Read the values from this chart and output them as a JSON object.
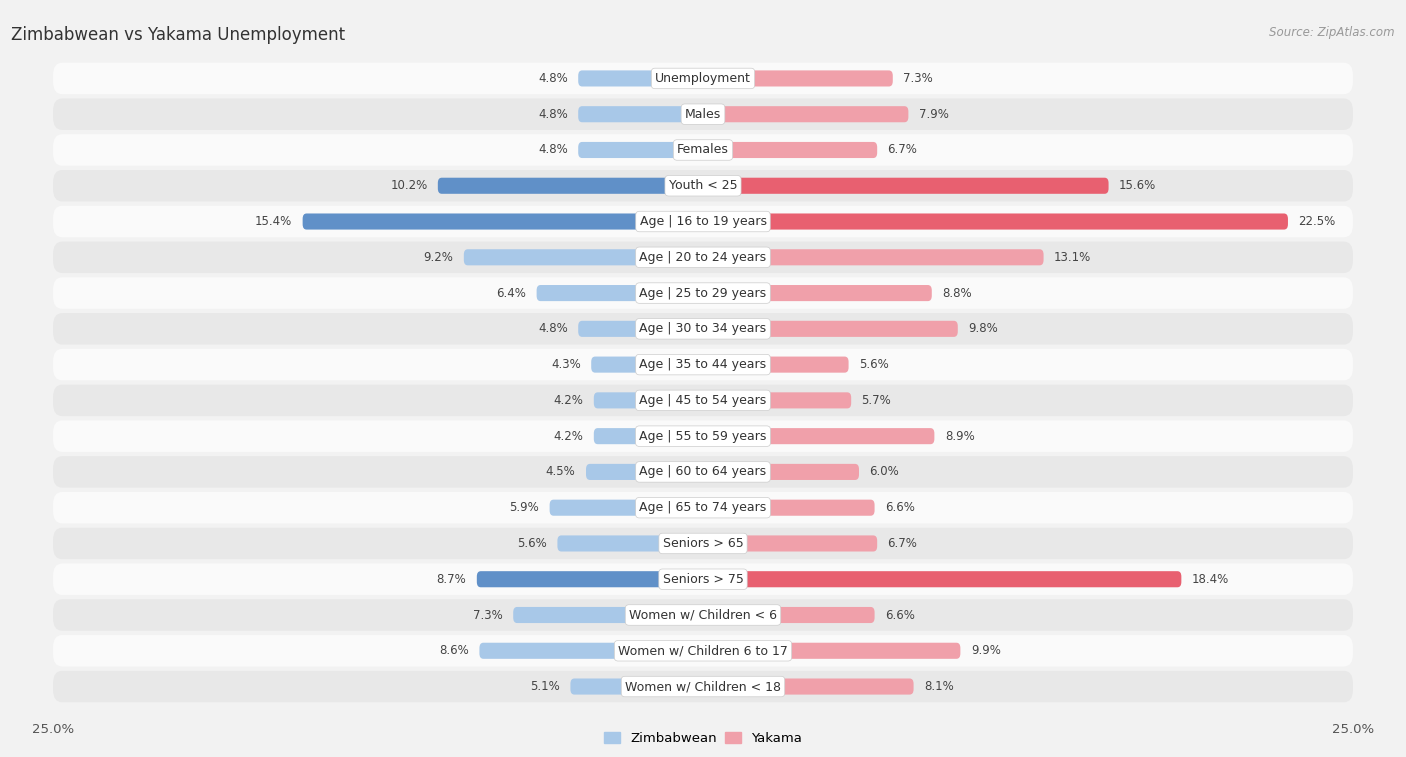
{
  "title": "Zimbabwean vs Yakama Unemployment",
  "source": "Source: ZipAtlas.com",
  "categories": [
    "Unemployment",
    "Males",
    "Females",
    "Youth < 25",
    "Age | 16 to 19 years",
    "Age | 20 to 24 years",
    "Age | 25 to 29 years",
    "Age | 30 to 34 years",
    "Age | 35 to 44 years",
    "Age | 45 to 54 years",
    "Age | 55 to 59 years",
    "Age | 60 to 64 years",
    "Age | 65 to 74 years",
    "Seniors > 65",
    "Seniors > 75",
    "Women w/ Children < 6",
    "Women w/ Children 6 to 17",
    "Women w/ Children < 18"
  ],
  "zimbabwean": [
    4.8,
    4.8,
    4.8,
    10.2,
    15.4,
    9.2,
    6.4,
    4.8,
    4.3,
    4.2,
    4.2,
    4.5,
    5.9,
    5.6,
    8.7,
    7.3,
    8.6,
    5.1
  ],
  "yakama": [
    7.3,
    7.9,
    6.7,
    15.6,
    22.5,
    13.1,
    8.8,
    9.8,
    5.6,
    5.7,
    8.9,
    6.0,
    6.6,
    6.7,
    18.4,
    6.6,
    9.9,
    8.1
  ],
  "max_val": 25.0,
  "blue_color": "#a8c8e8",
  "pink_color": "#f0a0aa",
  "highlight_blue": "#6090c8",
  "highlight_pink": "#e86070",
  "bg_color": "#f2f2f2",
  "row_bg_light": "#e8e8e8",
  "row_bg_white": "#fafafa",
  "bar_height": 0.45,
  "label_fontsize": 9.0,
  "title_fontsize": 12,
  "source_fontsize": 8.5,
  "value_fontsize": 8.5
}
